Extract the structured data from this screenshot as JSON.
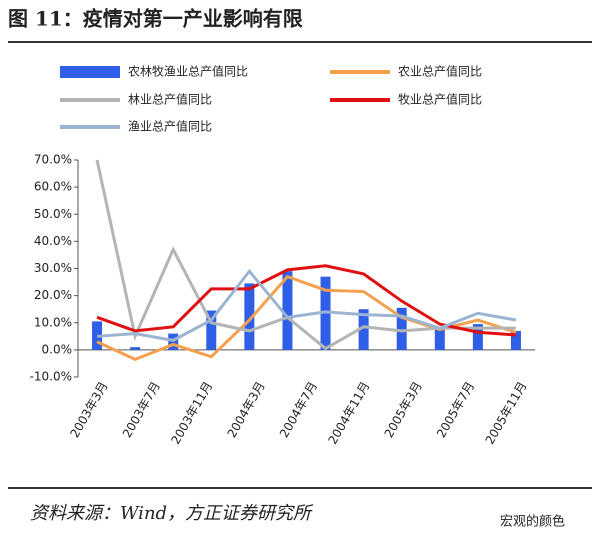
{
  "title": "图 11：疫情对第一产业影响有限",
  "source": "资料来源：Wind，方正证券研究所",
  "watermark": "宏观的颜色",
  "chart_data": {
    "type": "bar_line",
    "xtick_labels": [
      "2003年3月",
      "2003年7月",
      "2003年11月",
      "2004年3月",
      "2004年7月",
      "2004年11月",
      "2005年3月",
      "2005年7月",
      "2005年11月"
    ],
    "series": [
      {
        "name": "农林牧渔业总产值同比",
        "kind": "bar",
        "color": "#2f5fe6",
        "values": [
          10.5,
          1,
          6,
          14.5,
          24.5,
          29,
          27,
          15,
          15.5,
          7.5,
          9.5,
          7
        ]
      },
      {
        "name": "农业总产值同比",
        "kind": "line",
        "color": "#f4a04e",
        "values": [
          3,
          -3.5,
          2,
          -2.5,
          11,
          27,
          22,
          21.5,
          12,
          7.5,
          11,
          6.5
        ]
      },
      {
        "name": "林业总产值同比",
        "kind": "line",
        "color": "#b4b4b4",
        "values": [
          70,
          5,
          37,
          10,
          7,
          12,
          0.5,
          8.5,
          7,
          8,
          8,
          8
        ]
      },
      {
        "name": "牧业总产值同比",
        "kind": "line",
        "color": "#e01010",
        "values": [
          12,
          7,
          8.5,
          22.5,
          22.5,
          29.5,
          31,
          28,
          18,
          9.5,
          6.5,
          5.5
        ]
      },
      {
        "name": "渔业总产值同比",
        "kind": "line",
        "color": "#9bb4d2",
        "values": [
          5,
          6,
          3.5,
          11,
          29,
          12,
          14,
          13,
          12.5,
          8,
          13.5,
          11
        ]
      }
    ],
    "ylim": [
      -10,
      70
    ],
    "yticks": [
      {
        "value": -10,
        "label": "-10.0%"
      },
      {
        "value": 0,
        "label": "0.0%"
      },
      {
        "value": 10,
        "label": "10.0%"
      },
      {
        "value": 20,
        "label": "20.0%"
      },
      {
        "value": 30,
        "label": "30.0%"
      },
      {
        "value": 40,
        "label": "40.0%"
      },
      {
        "value": 50,
        "label": "50.0%"
      },
      {
        "value": 60,
        "label": "60.0%"
      },
      {
        "value": 70,
        "label": "70.0%"
      }
    ]
  }
}
